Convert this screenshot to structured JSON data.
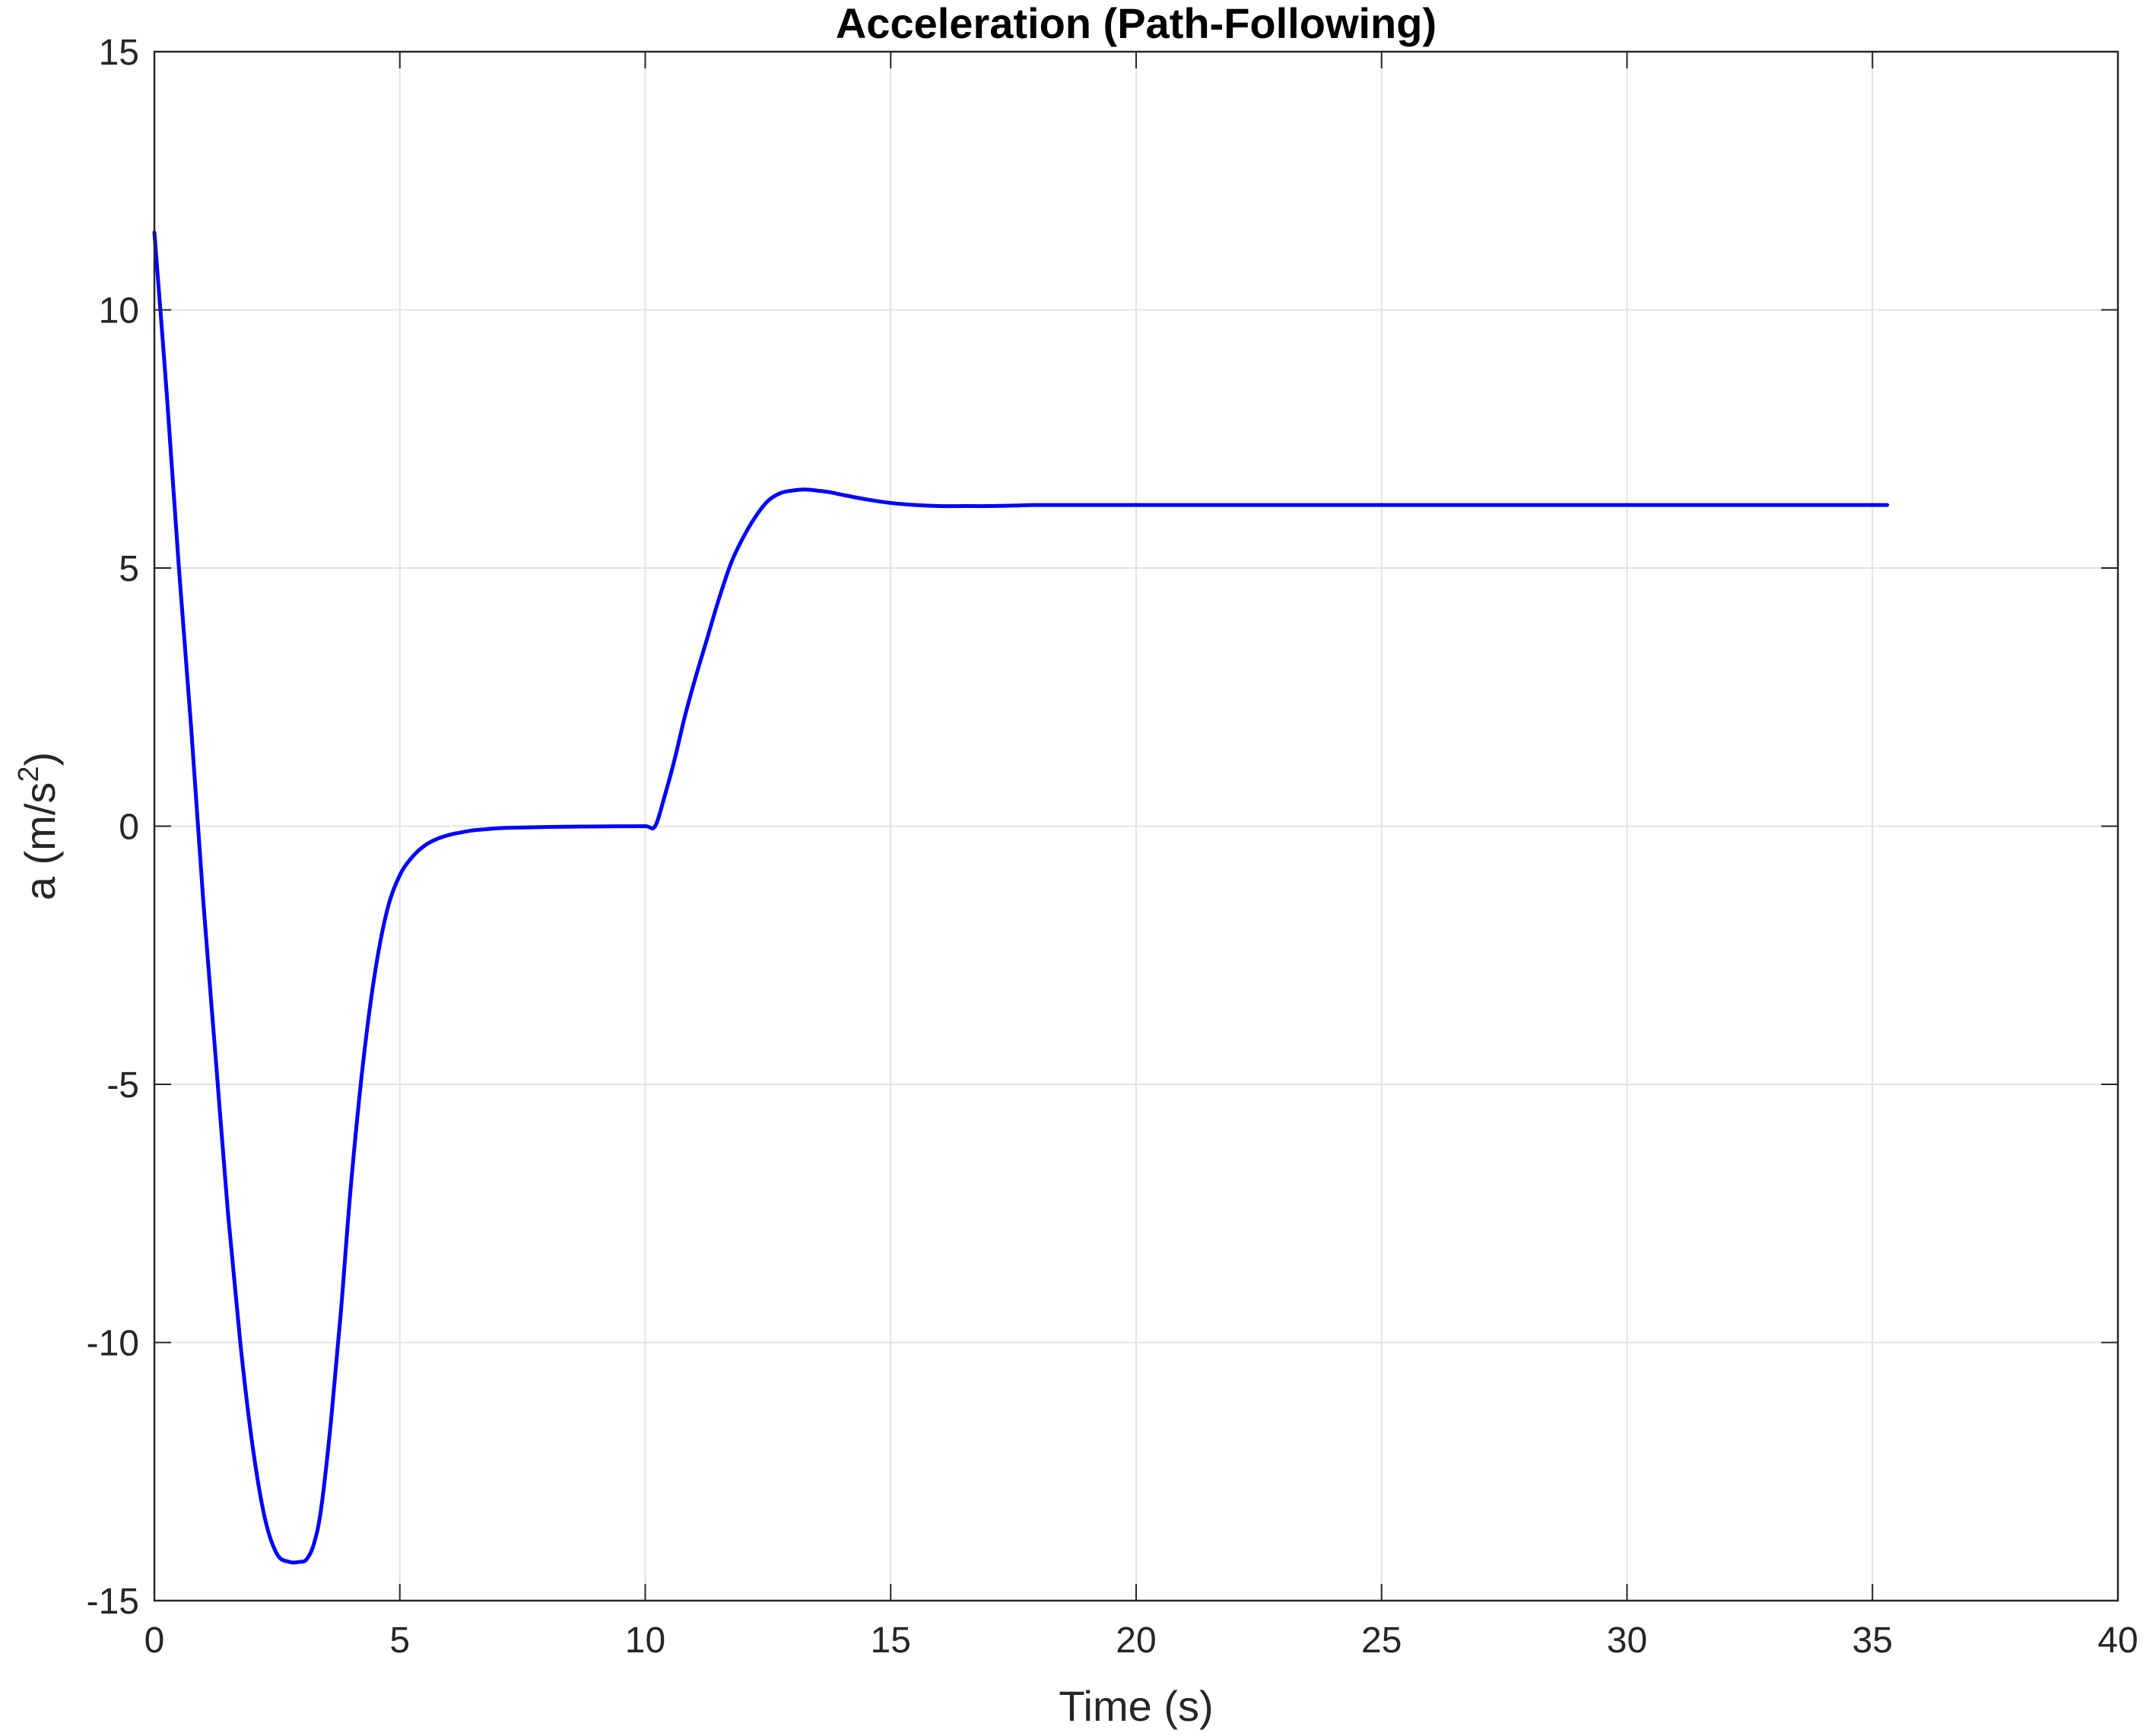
{
  "chart_data": {
    "type": "line",
    "title": "Acceleration (Path-Following)",
    "xlabel": "Time (s)",
    "ylabel_base": "a (m/s",
    "ylabel_sup": "2",
    "ylabel_close": ")",
    "xlim": [
      0,
      40
    ],
    "ylim": [
      -15,
      15
    ],
    "xticks": [
      0,
      5,
      10,
      15,
      20,
      25,
      30,
      35,
      40
    ],
    "yticks": [
      -15,
      -10,
      -5,
      0,
      5,
      10,
      15
    ],
    "xtick_labels": [
      "0",
      "5",
      "10",
      "15",
      "20",
      "25",
      "30",
      "35",
      "40"
    ],
    "ytick_labels": [
      "-15",
      "-10",
      "-5",
      "0",
      "5",
      "10",
      "15"
    ],
    "grid": true,
    "series": [
      {
        "color": "#0000ff",
        "x": [
          0,
          0.25,
          0.5,
          0.75,
          1.0,
          1.25,
          1.5,
          1.75,
          2.0,
          2.25,
          2.5,
          2.75,
          2.95,
          3.1,
          3.25,
          3.4,
          3.6,
          3.8,
          4.0,
          4.25,
          4.5,
          4.75,
          5.0,
          5.25,
          5.5,
          5.75,
          6.0,
          6.25,
          6.5,
          6.75,
          7.0,
          7.5,
          8.0,
          8.5,
          9.0,
          9.5,
          10.0,
          10.2,
          10.4,
          10.6,
          10.8,
          11.0,
          11.25,
          11.5,
          11.75,
          12.0,
          12.25,
          12.5,
          12.75,
          13.0,
          13.25,
          13.5,
          13.75,
          14.0,
          14.5,
          15.0,
          15.5,
          16.0,
          16.5,
          17.0,
          17.5,
          18.0,
          19.0,
          20.0,
          22.0,
          25.0,
          30.0,
          35.3
        ],
        "y": [
          11.5,
          8.4,
          5.0,
          1.9,
          -1.5,
          -4.5,
          -7.5,
          -10.0,
          -12.0,
          -13.4,
          -14.1,
          -14.25,
          -14.25,
          -14.2,
          -13.9,
          -13.2,
          -11.5,
          -9.4,
          -7.0,
          -4.6,
          -2.8,
          -1.6,
          -0.95,
          -0.6,
          -0.38,
          -0.25,
          -0.17,
          -0.12,
          -0.08,
          -0.06,
          -0.04,
          -0.025,
          -0.015,
          -0.01,
          -0.005,
          -0.002,
          0.0,
          0.0,
          0.6,
          1.3,
          2.1,
          2.8,
          3.6,
          4.4,
          5.1,
          5.6,
          6.0,
          6.3,
          6.45,
          6.5,
          6.52,
          6.5,
          6.47,
          6.42,
          6.33,
          6.26,
          6.22,
          6.2,
          6.2,
          6.2,
          6.21,
          6.22,
          6.22,
          6.22,
          6.22,
          6.22,
          6.22,
          6.22
        ]
      }
    ]
  }
}
